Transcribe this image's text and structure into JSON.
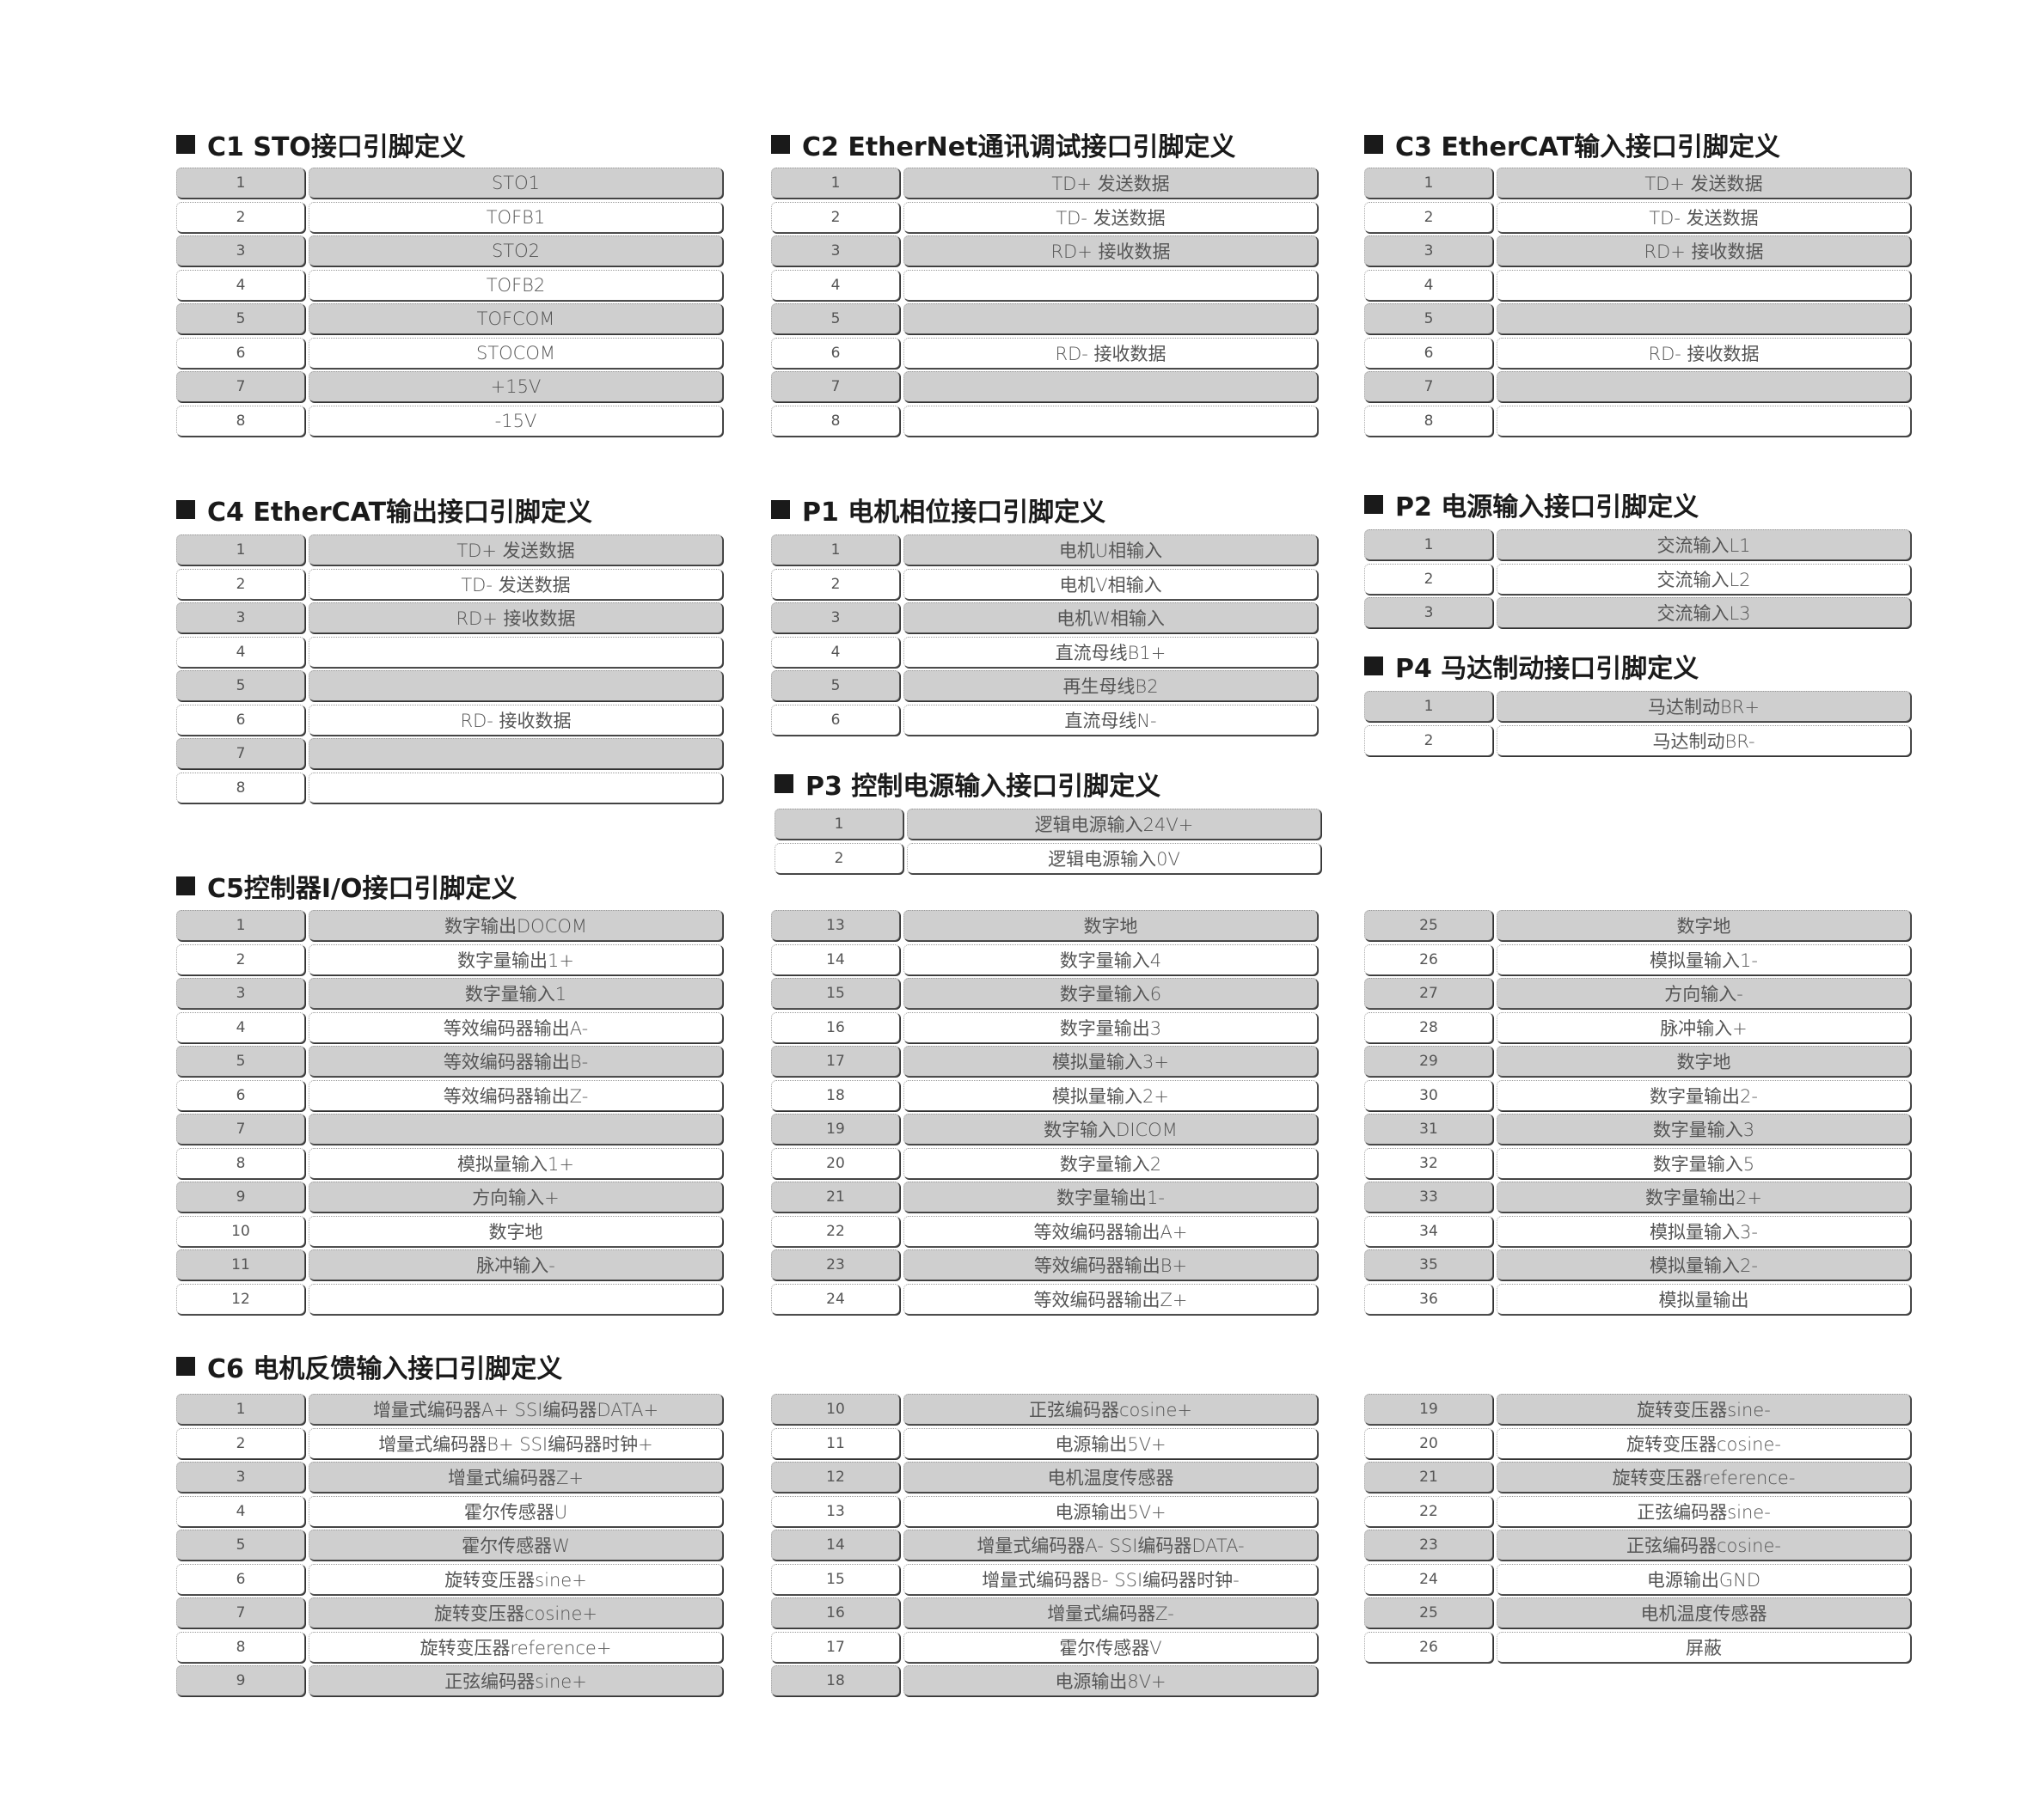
{
  "tables": [
    {
      "title": "C1  STO接口引脚定义",
      "rows": [
        [
          "1",
          "STO1"
        ],
        [
          "2",
          "TOFB1"
        ],
        [
          "3",
          "STO2"
        ],
        [
          "4",
          "TOFB2"
        ],
        [
          "5",
          "TOFCOM"
        ],
        [
          "6",
          "STOCOM"
        ],
        [
          "7",
          "+15V"
        ],
        [
          "8",
          "-15V"
        ]
      ]
    },
    {
      "title": "C2 EtherNet通讯调试接口引脚定义",
      "rows": [
        [
          "1",
          "TD+ 发送数据"
        ],
        [
          "2",
          "TD-  发送数据"
        ],
        [
          "3",
          "RD+ 接收数据"
        ],
        [
          "4",
          ""
        ],
        [
          "5",
          ""
        ],
        [
          "6",
          "RD- 接收数据"
        ],
        [
          "7",
          ""
        ],
        [
          "8",
          ""
        ]
      ]
    },
    {
      "title": "C3 EtherCAT输入接口引脚定义",
      "rows": [
        [
          "1",
          "TD+ 发送数据"
        ],
        [
          "2",
          "TD-  发送数据"
        ],
        [
          "3",
          "RD+ 接收数据"
        ],
        [
          "4",
          ""
        ],
        [
          "5",
          ""
        ],
        [
          "6",
          "RD- 接收数据"
        ],
        [
          "7",
          ""
        ],
        [
          "8",
          ""
        ]
      ]
    },
    {
      "title": "C4 EtherCAT输出接口引脚定义",
      "rows": [
        [
          "1",
          "TD+ 发送数据"
        ],
        [
          "2",
          "TD-  发送数据"
        ],
        [
          "3",
          "RD+ 接收数据"
        ],
        [
          "4",
          ""
        ],
        [
          "5",
          ""
        ],
        [
          "6",
          "RD- 接收数据"
        ],
        [
          "7",
          ""
        ],
        [
          "8",
          ""
        ]
      ]
    },
    {
      "title": "P1  电机相位接口引脚定义",
      "rows": [
        [
          "1",
          "电机U相输入"
        ],
        [
          "2",
          "电机V相输入"
        ],
        [
          "3",
          "电机W相输入"
        ],
        [
          "4",
          "直流母线B1+"
        ],
        [
          "5",
          "再生母线B2"
        ],
        [
          "6",
          "直流母线N-"
        ]
      ]
    },
    {
      "title": "P2  电源输入接口引脚定义",
      "rows": [
        [
          "1",
          "交流输入L1"
        ],
        [
          "2",
          "交流输入L2"
        ],
        [
          "3",
          "交流输入L3"
        ]
      ]
    },
    {
      "title": "P4  马达制动接口引脚定义",
      "rows": [
        [
          "1",
          "马达制动BR+"
        ],
        [
          "2",
          "马达制动BR-"
        ]
      ]
    },
    {
      "title": "P3  控制电源输入接口引脚定义",
      "rows": [
        [
          "1",
          "逻辑电源输入24V+"
        ],
        [
          "2",
          "逻辑电源输入0V"
        ]
      ]
    },
    {
      "title": "C5控制器I/O接口引脚定义",
      "rows": [
        [
          "1",
          "数字输出DOCOM"
        ],
        [
          "2",
          "数字量输出1+"
        ],
        [
          "3",
          "数字量输入1"
        ],
        [
          "4",
          "等效编码器输出A-"
        ],
        [
          "5",
          "等效编码器输出B-"
        ],
        [
          "6",
          "等效编码器输出Z-"
        ],
        [
          "7",
          ""
        ],
        [
          "8",
          "模拟量输入1+"
        ],
        [
          "9",
          "方向输入+"
        ],
        [
          "10",
          "数字地"
        ],
        [
          "11",
          "脉冲输入-"
        ],
        [
          "12",
          ""
        ]
      ]
    },
    {
      "title": "",
      "rows": [
        [
          "13",
          "数字地"
        ],
        [
          "14",
          "数字量输入4"
        ],
        [
          "15",
          "数字量输入6"
        ],
        [
          "16",
          "数字量输出3"
        ],
        [
          "17",
          "模拟量输入3+"
        ],
        [
          "18",
          "模拟量输入2+"
        ],
        [
          "19",
          "数字输入DICOM"
        ],
        [
          "20",
          "数字量输入2"
        ],
        [
          "21",
          "数字量输出1-"
        ],
        [
          "22",
          "等效编码器输出A+"
        ],
        [
          "23",
          "等效编码器输出B+"
        ],
        [
          "24",
          "等效编码器输出Z+"
        ]
      ]
    },
    {
      "title": "",
      "rows": [
        [
          "25",
          "数字地"
        ],
        [
          "26",
          "模拟量输入1-"
        ],
        [
          "27",
          "方向输入-"
        ],
        [
          "28",
          "脉冲输入+"
        ],
        [
          "29",
          "数字地"
        ],
        [
          "30",
          "数字量输出2-"
        ],
        [
          "31",
          "数字量输入3"
        ],
        [
          "32",
          "数字量输入5"
        ],
        [
          "33",
          "数字量输出2+"
        ],
        [
          "34",
          "模拟量输入3-"
        ],
        [
          "35",
          "模拟量输入2-"
        ],
        [
          "36",
          "模拟量输出"
        ]
      ]
    },
    {
      "title": "C6 电机反馈输入接口引脚定义",
      "rows": [
        [
          "1",
          "增量式编码器A+    SSI编码器DATA+"
        ],
        [
          "2",
          "增量式编码器B+  SSI编码器时钟+"
        ],
        [
          "3",
          "增量式编码器Z+"
        ],
        [
          "4",
          "霍尔传感器U"
        ],
        [
          "5",
          "霍尔传感器W"
        ],
        [
          "6",
          "旋转变压器sine+"
        ],
        [
          "7",
          "旋转变压器cosine+"
        ],
        [
          "8",
          "旋转变压器reference+"
        ],
        [
          "9",
          "正弦编码器sine+"
        ]
      ]
    },
    {
      "title": "",
      "rows": [
        [
          "10",
          "正弦编码器cosine+"
        ],
        [
          "11",
          "电源输出5V+"
        ],
        [
          "12",
          "电机温度传感器"
        ],
        [
          "13",
          "电源输出5V+"
        ],
        [
          "14",
          "增量式编码器A-   SSI编码器DATA-"
        ],
        [
          "15",
          "增量式编码器B-  SSI编码器时钟-"
        ],
        [
          "16",
          "增量式编码器Z-"
        ],
        [
          "17",
          "霍尔传感器V"
        ],
        [
          "18",
          "电源输出8V+"
        ]
      ]
    },
    {
      "title": "",
      "rows": [
        [
          "19",
          "旋转变压器sine-"
        ],
        [
          "20",
          "旋转变压器cosine-"
        ],
        [
          "21",
          "旋转变压器reference-"
        ],
        [
          "22",
          "正弦编码器sine-"
        ],
        [
          "23",
          "正弦编码器cosine-"
        ],
        [
          "24",
          "电源输出GND"
        ],
        [
          "25",
          "电机温度传感器"
        ],
        [
          "26",
          "屏蔽"
        ]
      ]
    }
  ]
}
